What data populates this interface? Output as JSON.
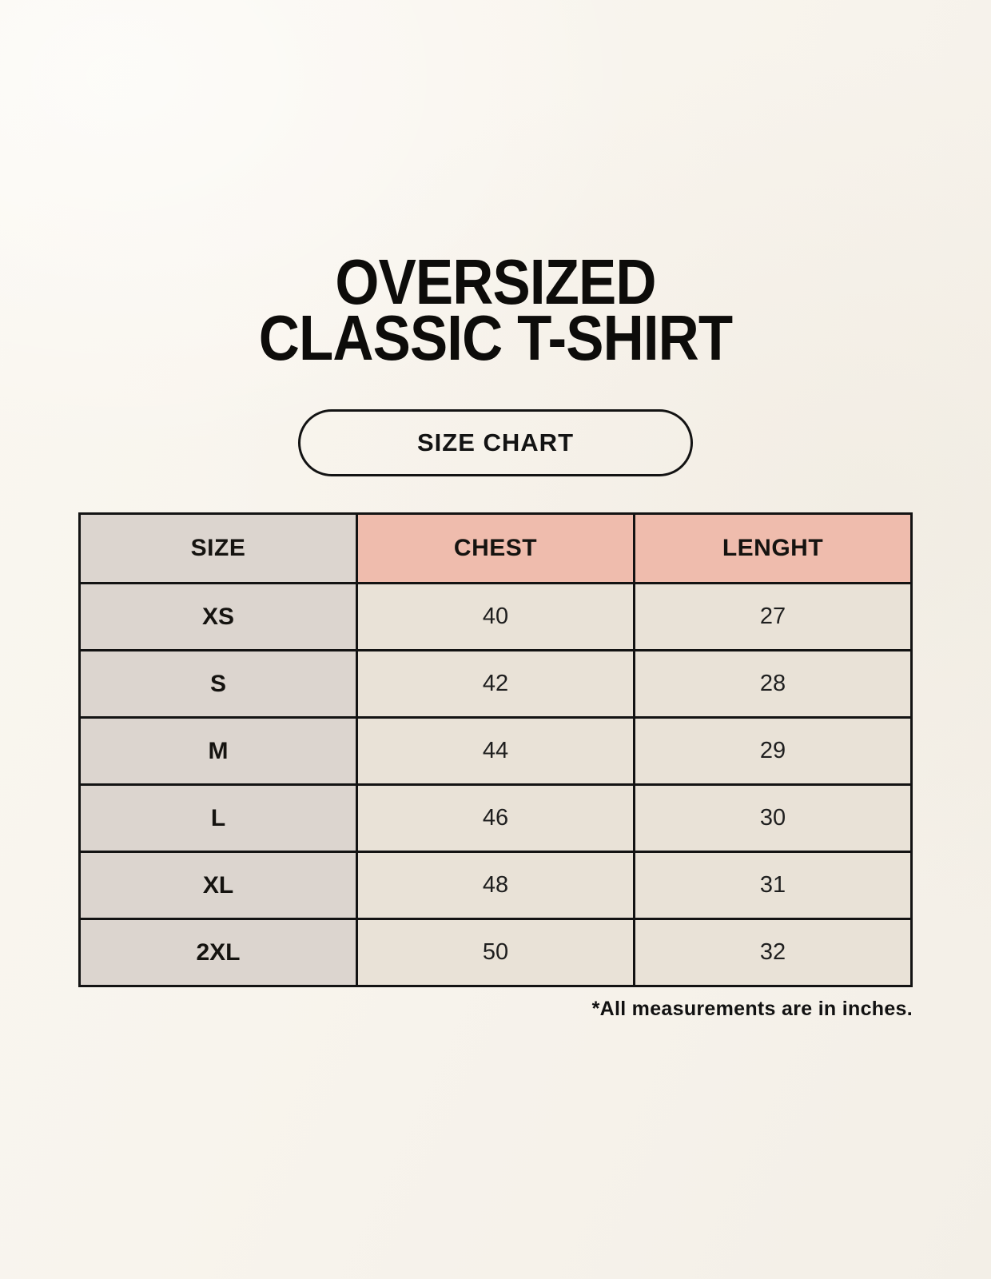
{
  "header": {
    "title_line1": "OVERSIZED",
    "title_line2": "CLASSIC T-SHIRT",
    "badge_label": "SIZE CHART"
  },
  "footnote": "*All measurements are in inches.",
  "colors": {
    "background": "#f8f4ed",
    "label_column_bg": "#dcd5cf",
    "measure_header_bg": "#efbcad",
    "value_cell_bg": "#e9e2d7",
    "border": "#131313",
    "text": "#0d0c0a"
  },
  "chart_data": {
    "type": "table",
    "title": "OVERSIZED CLASSIC T-SHIRT",
    "subtitle": "SIZE CHART",
    "columns": [
      "SIZE",
      "CHEST",
      "LENGHT"
    ],
    "units_note": "*All measurements are in inches.",
    "rows": [
      {
        "size": "XS",
        "chest": "40",
        "length": "27"
      },
      {
        "size": "S",
        "chest": "42",
        "length": "28"
      },
      {
        "size": "M",
        "chest": "44",
        "length": "29"
      },
      {
        "size": "L",
        "chest": "46",
        "length": "30"
      },
      {
        "size": "XL",
        "chest": "48",
        "length": "31"
      },
      {
        "size": "2XL",
        "chest": "50",
        "length": "32"
      }
    ]
  }
}
